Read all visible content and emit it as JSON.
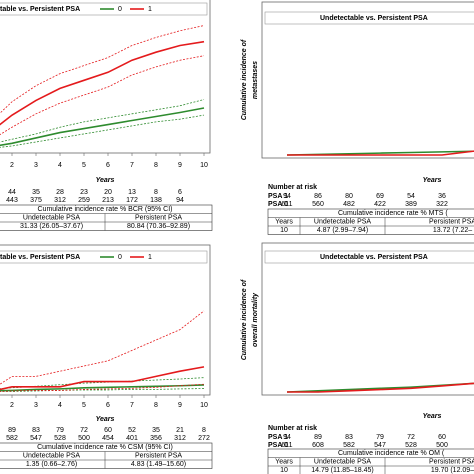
{
  "chart_data": [
    {
      "type": "line",
      "legend_title": "table vs. Persistent PSA",
      "xlabel": "Years",
      "x": [
        0,
        1,
        2,
        3,
        4,
        5,
        6,
        7,
        8,
        9,
        10
      ],
      "xlim": [
        0,
        10
      ],
      "xticks": [
        2,
        3,
        4,
        5,
        6,
        7,
        8,
        9,
        10
      ],
      "ylim": [
        0,
        100
      ],
      "series": [
        {
          "name": "0",
          "color": "#2e8b2e",
          "values": [
            0,
            2,
            5,
            9,
            13,
            16,
            19,
            22,
            25,
            28,
            31.33
          ],
          "lower": [
            0,
            1,
            3,
            6,
            9,
            12,
            15,
            18,
            21,
            23,
            26.05
          ],
          "upper": [
            0,
            4,
            8,
            12,
            17,
            21,
            24,
            27,
            30,
            33,
            37.67
          ]
        },
        {
          "name": "1",
          "color": "#e41a1c",
          "values": [
            0,
            12,
            26,
            37,
            46,
            52,
            58,
            67,
            73,
            78,
            80.84
          ],
          "lower": [
            0,
            6,
            17,
            27,
            35,
            41,
            47,
            56,
            62,
            67,
            70.36
          ],
          "upper": [
            0,
            19,
            36,
            48,
            57,
            63,
            69,
            78,
            84,
            89,
            92.89
          ]
        }
      ],
      "risk_table": {
        "rows": [
          {
            "values": [
              44,
              35,
              28,
              23,
              20,
              13,
              8,
              6
            ]
          },
          {
            "values": [
              443,
              375,
              312,
              259,
              213,
              172,
              138,
              94
            ]
          }
        ]
      },
      "incidence_table": {
        "title": "Cumulative incidence rate % BCR (95% CI)",
        "columns": [
          "Undetectable PSA",
          "Persistent PSA"
        ],
        "rows": [
          [
            "31.33 (26.05–37.67)",
            "80.84 (70.36–92.89)"
          ]
        ]
      }
    },
    {
      "type": "line",
      "legend_title": "Undetectable vs. Persistent PSA",
      "ylabel": [
        "Cumulative incidence of",
        "metastases"
      ],
      "xlabel": "Years",
      "x": [
        0,
        1,
        2,
        3,
        4,
        5,
        6,
        7,
        8,
        9,
        10
      ],
      "xlim": [
        0,
        10
      ],
      "ylim": [
        0,
        100
      ],
      "series": [
        {
          "color": "#2e8b2e",
          "values": [
            0,
            0.5,
            1,
            1.5,
            2,
            2.5,
            3,
            3.5,
            4,
            4.5,
            4.87
          ]
        },
        {
          "color": "#e41a1c",
          "values": [
            0,
            0,
            0,
            0,
            0,
            0,
            3,
            3,
            5,
            8,
            13.72
          ]
        }
      ],
      "risk_table": {
        "title": "Number at risk",
        "rows": [
          {
            "label": "PSA 1",
            "values": [
              94,
              86,
              80,
              69,
              54,
              36
            ]
          },
          {
            "label": "PSA 0",
            "values": [
              611,
              560,
              482,
              422,
              389,
              322
            ]
          }
        ]
      },
      "incidence_table": {
        "title": "Cumulative incidence rate % MTS (",
        "columns": [
          "Years",
          "Undetectable PSA",
          "Persistent PSA"
        ],
        "rows": [
          [
            "10",
            "4.87 (2.99–7.94)",
            "13.72 (7.22–"
          ]
        ]
      }
    },
    {
      "type": "line",
      "legend_title": "table vs. Persistent PSA",
      "xlabel": "Years",
      "x": [
        0,
        1,
        2,
        3,
        4,
        5,
        6,
        7,
        8,
        9,
        10
      ],
      "xlim": [
        0,
        10
      ],
      "xticks": [
        2,
        3,
        4,
        5,
        6,
        7,
        8,
        9,
        10
      ],
      "ylim": [
        0,
        25
      ],
      "series": [
        {
          "name": "0",
          "color": "#2e8b2e",
          "values": [
            0,
            0.2,
            0.3,
            0.5,
            0.6,
            0.8,
            0.9,
            1,
            1.1,
            1.2,
            1.35
          ],
          "lower": [
            0,
            0.1,
            0.1,
            0.2,
            0.3,
            0.4,
            0.4,
            0.5,
            0.5,
            0.6,
            0.66
          ],
          "upper": [
            0,
            0.5,
            0.8,
            1.1,
            1.4,
            1.7,
            1.9,
            2.1,
            2.3,
            2.5,
            2.76
          ]
        },
        {
          "name": "1",
          "color": "#e41a1c",
          "values": [
            0,
            0,
            1,
            1,
            1,
            2,
            2,
            2,
            3,
            4,
            4.83
          ],
          "lower": [
            0,
            0,
            0.2,
            0.3,
            0.3,
            0.5,
            0.6,
            0.7,
            0.9,
            1.2,
            1.49
          ],
          "upper": [
            0,
            0,
            3,
            3,
            4,
            5,
            6,
            8,
            10,
            12,
            15.6
          ]
        }
      ],
      "risk_table": {
        "rows": [
          {
            "values": [
              89,
              83,
              79,
              72,
              60,
              52,
              35,
              21,
              8
            ]
          },
          {
            "values": [
              582,
              547,
              528,
              500,
              454,
              401,
              356,
              312,
              272
            ]
          }
        ]
      },
      "incidence_table": {
        "title": "Cumulative incidence rate % CSM (95% CI)",
        "columns": [
          "Undetectable PSA",
          "Persistent PSA"
        ],
        "rows": [
          [
            "1.35 (0.66–2.76)",
            "4.83 (1.49–15.60)"
          ]
        ]
      }
    },
    {
      "type": "line",
      "legend_title": "Undetectable vs. Persistent PSA",
      "ylabel": [
        "Cumulative incidence of",
        "overall mortality"
      ],
      "xlabel": "Years",
      "x": [
        0,
        1,
        2,
        3,
        4,
        5,
        6,
        7,
        8,
        9,
        10
      ],
      "xlim": [
        0,
        10
      ],
      "ylim": [
        0,
        100
      ],
      "series": [
        {
          "color": "#2e8b2e",
          "values": [
            0,
            1,
            2,
            3,
            4,
            5.5,
            7,
            8.5,
            10.5,
            12.5,
            14.79
          ]
        },
        {
          "color": "#e41a1c",
          "values": [
            0,
            0,
            1,
            2,
            3,
            5,
            7,
            9,
            12,
            15,
            19.7
          ]
        }
      ],
      "risk_table": {
        "title": "Number at risk",
        "rows": [
          {
            "label": "PSA 1",
            "values": [
              94,
              89,
              83,
              79,
              72,
              60
            ]
          },
          {
            "label": "PSA 0",
            "values": [
              611,
              608,
              582,
              547,
              528,
              500
            ]
          }
        ]
      },
      "incidence_table": {
        "title": "Cumulative incidence rate % OM (",
        "columns": [
          "Years",
          "Undetectable PSA",
          "Persistent PSA"
        ],
        "rows": [
          [
            "10",
            "14.79 (11.85–18.45)",
            "19.70 (12.09–"
          ]
        ]
      }
    }
  ]
}
